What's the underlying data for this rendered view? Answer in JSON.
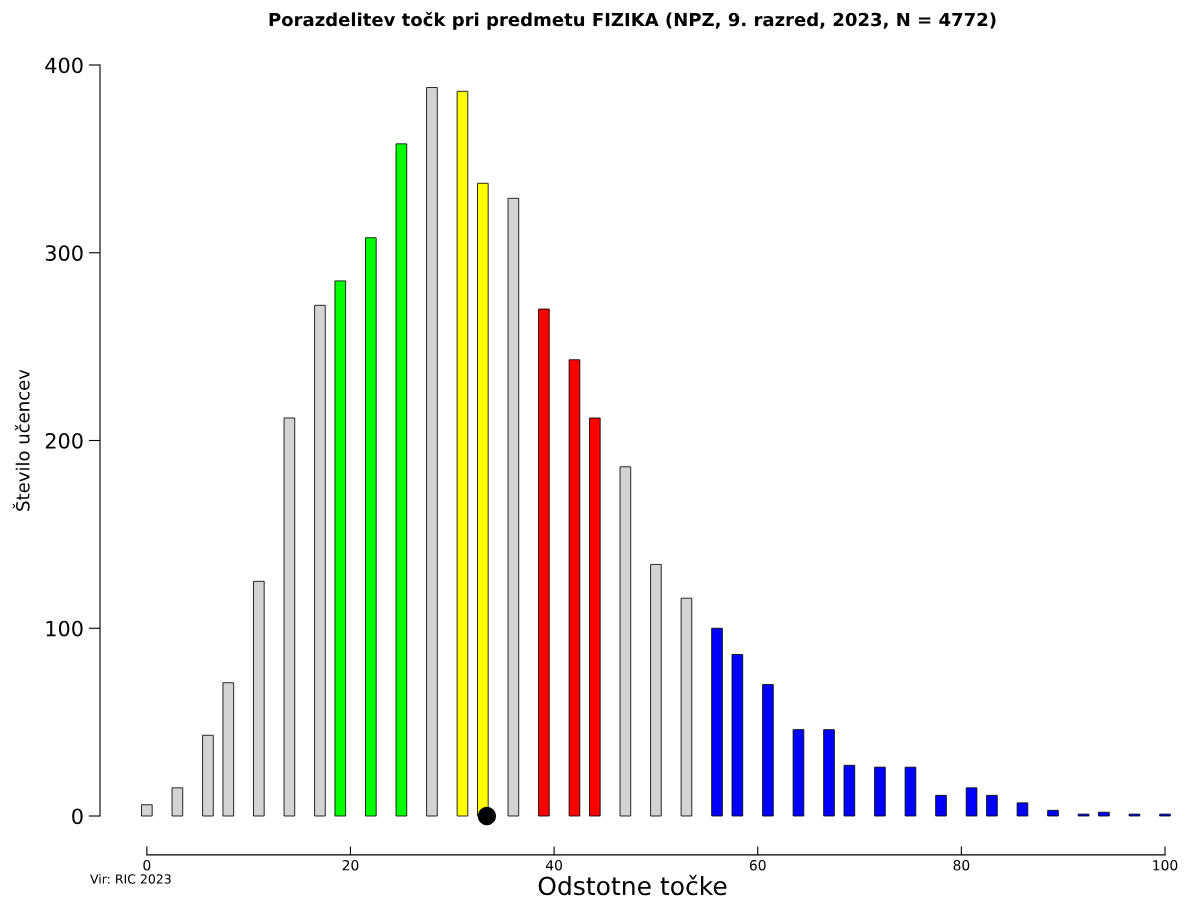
{
  "chart_data": {
    "type": "bar",
    "title": "Porazdelitev točk pri predmetu FIZIKA (NPZ, 9. razred, 2023, N = 4772)",
    "xlabel": "Odstotne točke",
    "ylabel": "Število učencev",
    "annotations": [
      "Vir: RIC 2023"
    ],
    "series": [
      {
        "x": [
          0,
          3,
          6,
          8,
          11,
          14,
          17,
          19,
          22,
          25,
          28,
          31,
          33,
          36,
          39,
          42,
          44,
          47,
          50,
          53,
          56,
          58,
          61,
          64,
          67,
          69,
          72,
          75,
          78,
          81,
          83,
          86,
          89,
          92,
          94,
          97,
          100
        ],
        "values": [
          6,
          15,
          43,
          71,
          125,
          212,
          272,
          285,
          308,
          358,
          388,
          386,
          337,
          329,
          270,
          243,
          212,
          186,
          134,
          116,
          100,
          86,
          70,
          46,
          46,
          27,
          26,
          26,
          11,
          15,
          11,
          7,
          3,
          1,
          2,
          1,
          1
        ],
        "colors": [
          "#d3d3d3",
          "#d3d3d3",
          "#d3d3d3",
          "#d3d3d3",
          "#d3d3d3",
          "#d3d3d3",
          "#d3d3d3",
          "#00ff00",
          "#00ff00",
          "#00ff00",
          "#d3d3d3",
          "#ffff00",
          "#ffff00",
          "#d3d3d3",
          "#ff0000",
          "#ff0000",
          "#ff0000",
          "#d3d3d3",
          "#d3d3d3",
          "#d3d3d3",
          "#0000ff",
          "#0000ff",
          "#0000ff",
          "#0000ff",
          "#0000ff",
          "#0000ff",
          "#0000ff",
          "#0000ff",
          "#0000ff",
          "#0000ff",
          "#0000ff",
          "#0000ff",
          "#0000ff",
          "#0000ff",
          "#0000ff",
          "#0000ff",
          "#0000ff"
        ]
      },
      {
        "type": "scatter",
        "x": [
          33.4
        ],
        "values": [
          0
        ],
        "color": "#000000"
      }
    ],
    "marker": "circle",
    "grid": false,
    "xlim": [
      -4.6,
      100
    ],
    "xticks": [
      0,
      20,
      40,
      60,
      80,
      100
    ],
    "ylim": [
      0,
      400
    ],
    "yticks": [
      0,
      100,
      200,
      300,
      400
    ]
  }
}
